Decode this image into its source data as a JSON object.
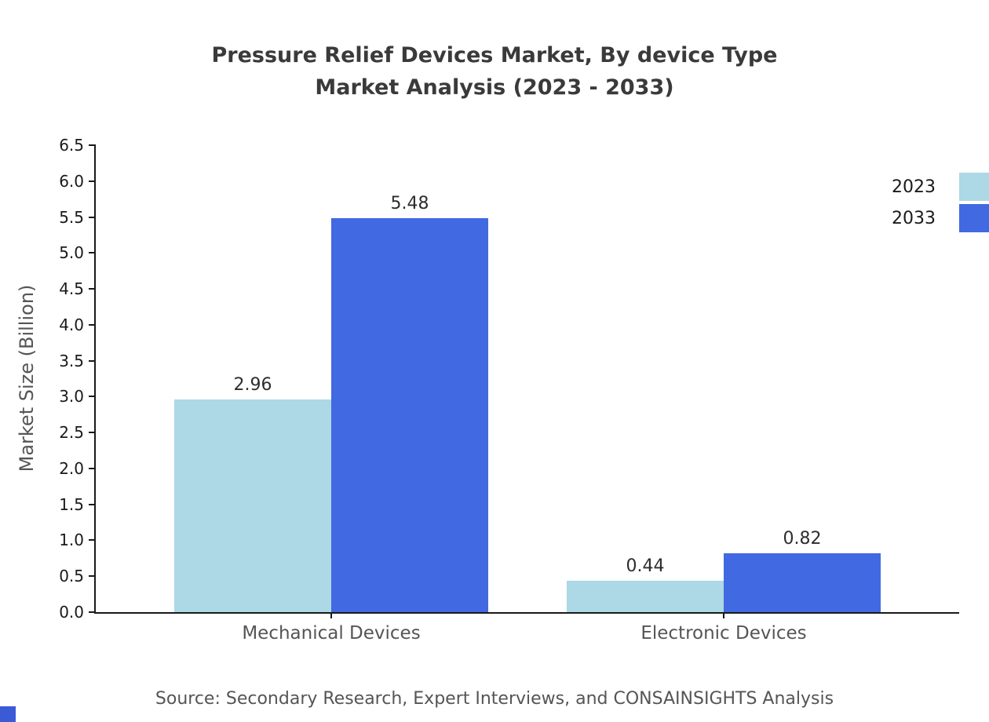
{
  "title": {
    "line1": "Pressure Relief Devices Market, By device Type",
    "line2": "Market Analysis (2023 - 2033)"
  },
  "source_text": "Source: Secondary Research, Expert Interviews, and CONSAINSIGHTS Analysis",
  "chart_data": {
    "type": "bar",
    "title": "Pressure Relief Devices Market, By device Type Market Analysis (2023 - 2033)",
    "categories": [
      "Mechanical Devices",
      "Electronic Devices"
    ],
    "series": [
      {
        "name": "2023",
        "color": "#add8e6",
        "values": [
          2.96,
          0.44
        ]
      },
      {
        "name": "2033",
        "color": "#4169e1",
        "values": [
          5.48,
          0.82
        ]
      }
    ],
    "xlabel": "",
    "ylabel": "Market Size (Billion)",
    "ylim": [
      0,
      6.5
    ],
    "ytick_step": 0.5,
    "grid": false,
    "legend_position": "top-right"
  },
  "colors": {
    "axis": "#1a1a1a",
    "tick_text": "#1a1a1a",
    "title_text": "#3a3a3a",
    "muted_text": "#555555",
    "corner_accent": "#3b5ad6"
  }
}
